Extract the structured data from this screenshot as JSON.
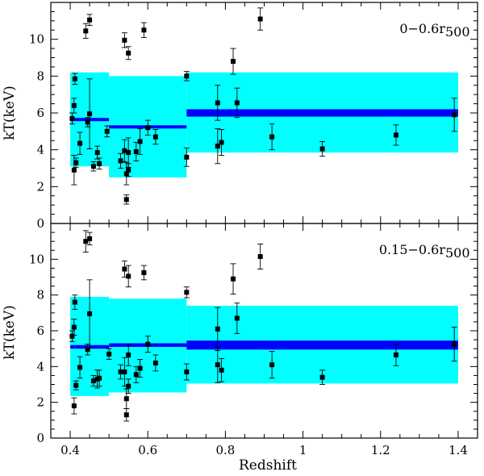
{
  "chart_data": [
    {
      "type": "scatter",
      "panel": "top",
      "annotation": "0−0.6r",
      "annotation_sub": "500",
      "xlabel": "Redshift",
      "ylabel": "kT(keV)",
      "xlim": [
        0.35,
        1.45
      ],
      "ylim": [
        0,
        12
      ],
      "xticks": [
        0.4,
        0.6,
        0.8,
        1,
        1.2,
        1.4
      ],
      "xtick_labels": [],
      "yticks": [
        0,
        2,
        4,
        6,
        8,
        10
      ],
      "ytick_labels": [
        "0",
        "2",
        "4",
        "6",
        "8",
        "10"
      ],
      "bin_colors": {
        "band": "#00ffff",
        "mean": "#0000ff",
        "points": "#000000"
      },
      "bins": [
        {
          "x0": 0.4,
          "x1": 0.5,
          "band_low": 3.1,
          "band_high": 8.2,
          "mean": 5.65,
          "mean_err": 0.08
        },
        {
          "x0": 0.5,
          "x1": 0.7,
          "band_low": 2.5,
          "band_high": 8.0,
          "mean": 5.25,
          "mean_err": 0.08
        },
        {
          "x0": 0.7,
          "x1": 1.4,
          "band_low": 3.85,
          "band_high": 8.2,
          "mean": 6.0,
          "mean_err": 0.2
        }
      ],
      "points": [
        {
          "x": 0.405,
          "y": 5.7,
          "err": 0.3
        },
        {
          "x": 0.41,
          "y": 6.4,
          "err": 0.4
        },
        {
          "x": 0.41,
          "y": 2.9,
          "err": 0.8
        },
        {
          "x": 0.412,
          "y": 7.85,
          "err": 0.3
        },
        {
          "x": 0.415,
          "y": 3.3,
          "err": 0.25
        },
        {
          "x": 0.425,
          "y": 4.35,
          "err": 0.6
        },
        {
          "x": 0.44,
          "y": 10.45,
          "err": 0.4
        },
        {
          "x": 0.445,
          "y": 5.5,
          "err": 0.25
        },
        {
          "x": 0.45,
          "y": 11.05,
          "err": 0.3
        },
        {
          "x": 0.45,
          "y": 5.95,
          "err": 1.9
        },
        {
          "x": 0.46,
          "y": 3.1,
          "err": 0.25
        },
        {
          "x": 0.47,
          "y": 3.85,
          "err": 0.35
        },
        {
          "x": 0.475,
          "y": 3.25,
          "err": 0.3
        },
        {
          "x": 0.495,
          "y": 5.0,
          "err": 0.3
        },
        {
          "x": 0.53,
          "y": 3.4,
          "err": 0.4
        },
        {
          "x": 0.54,
          "y": 9.95,
          "err": 0.4
        },
        {
          "x": 0.54,
          "y": 3.95,
          "err": 0.6
        },
        {
          "x": 0.545,
          "y": 1.3,
          "err": 0.25
        },
        {
          "x": 0.545,
          "y": 2.7,
          "err": 0.6
        },
        {
          "x": 0.55,
          "y": 9.25,
          "err": 0.35
        },
        {
          "x": 0.55,
          "y": 3.85,
          "err": 0.8
        },
        {
          "x": 0.55,
          "y": 2.9,
          "err": 0.35
        },
        {
          "x": 0.57,
          "y": 3.9,
          "err": 0.5
        },
        {
          "x": 0.58,
          "y": 4.45,
          "err": 0.7
        },
        {
          "x": 0.59,
          "y": 10.5,
          "err": 0.4
        },
        {
          "x": 0.6,
          "y": 5.2,
          "err": 0.4
        },
        {
          "x": 0.62,
          "y": 4.7,
          "err": 0.4
        },
        {
          "x": 0.7,
          "y": 8.0,
          "err": 0.25
        },
        {
          "x": 0.7,
          "y": 3.6,
          "err": 0.5
        },
        {
          "x": 0.78,
          "y": 6.55,
          "err": 0.95
        },
        {
          "x": 0.78,
          "y": 4.2,
          "err": 0.95
        },
        {
          "x": 0.79,
          "y": 4.4,
          "err": 0.7
        },
        {
          "x": 0.82,
          "y": 8.8,
          "err": 0.7
        },
        {
          "x": 0.83,
          "y": 6.55,
          "err": 0.8
        },
        {
          "x": 0.89,
          "y": 11.1,
          "err": 0.6
        },
        {
          "x": 0.92,
          "y": 4.7,
          "err": 0.7
        },
        {
          "x": 1.05,
          "y": 4.05,
          "err": 0.4
        },
        {
          "x": 1.24,
          "y": 4.8,
          "err": 0.55
        },
        {
          "x": 1.39,
          "y": 5.9,
          "err": 0.9
        }
      ]
    },
    {
      "type": "scatter",
      "panel": "bottom",
      "annotation": "0.15−0.6r",
      "annotation_sub": "500",
      "xlabel": "Redshift",
      "ylabel": "kT(keV)",
      "xlim": [
        0.35,
        1.45
      ],
      "ylim": [
        0,
        12
      ],
      "xticks": [
        0.4,
        0.6,
        0.8,
        1,
        1.2,
        1.4
      ],
      "xtick_labels": [
        "0.4",
        "0.6",
        "0.8",
        "1",
        "1.2",
        "1.4"
      ],
      "yticks": [
        0,
        2,
        4,
        6,
        8,
        10
      ],
      "ytick_labels": [
        "0",
        "2",
        "4",
        "6",
        "8",
        "10"
      ],
      "bin_colors": {
        "band": "#00ffff",
        "mean": "#0000ff",
        "points": "#000000"
      },
      "bins": [
        {
          "x0": 0.4,
          "x1": 0.5,
          "band_low": 2.35,
          "band_high": 7.9,
          "mean": 5.1,
          "mean_err": 0.1
        },
        {
          "x0": 0.5,
          "x1": 0.7,
          "band_low": 2.55,
          "band_high": 7.8,
          "mean": 5.2,
          "mean_err": 0.1
        },
        {
          "x0": 0.7,
          "x1": 1.4,
          "band_low": 3.05,
          "band_high": 7.4,
          "mean": 5.2,
          "mean_err": 0.25
        }
      ],
      "points": [
        {
          "x": 0.405,
          "y": 5.7,
          "err": 0.3
        },
        {
          "x": 0.41,
          "y": 6.2,
          "err": 0.45
        },
        {
          "x": 0.41,
          "y": 1.8,
          "err": 0.45
        },
        {
          "x": 0.412,
          "y": 7.6,
          "err": 0.4
        },
        {
          "x": 0.415,
          "y": 2.95,
          "err": 0.25
        },
        {
          "x": 0.425,
          "y": 3.95,
          "err": 0.6
        },
        {
          "x": 0.44,
          "y": 11.0,
          "err": 0.6
        },
        {
          "x": 0.445,
          "y": 4.95,
          "err": 0.3
        },
        {
          "x": 0.45,
          "y": 11.15,
          "err": 0.35
        },
        {
          "x": 0.45,
          "y": 6.95,
          "err": 1.9
        },
        {
          "x": 0.46,
          "y": 3.2,
          "err": 0.3
        },
        {
          "x": 0.47,
          "y": 3.3,
          "err": 0.5
        },
        {
          "x": 0.475,
          "y": 3.35,
          "err": 0.45
        },
        {
          "x": 0.5,
          "y": 4.7,
          "err": 0.3
        },
        {
          "x": 0.53,
          "y": 3.7,
          "err": 0.4
        },
        {
          "x": 0.54,
          "y": 9.45,
          "err": 0.45
        },
        {
          "x": 0.54,
          "y": 3.7,
          "err": 0.8
        },
        {
          "x": 0.545,
          "y": 1.3,
          "err": 0.35
        },
        {
          "x": 0.545,
          "y": 2.2,
          "err": 0.55
        },
        {
          "x": 0.55,
          "y": 9.05,
          "err": 0.6
        },
        {
          "x": 0.55,
          "y": 4.65,
          "err": 0.6
        },
        {
          "x": 0.55,
          "y": 2.9,
          "err": 0.4
        },
        {
          "x": 0.57,
          "y": 3.55,
          "err": 0.45
        },
        {
          "x": 0.58,
          "y": 3.9,
          "err": 0.5
        },
        {
          "x": 0.59,
          "y": 9.25,
          "err": 0.4
        },
        {
          "x": 0.6,
          "y": 5.25,
          "err": 0.45
        },
        {
          "x": 0.62,
          "y": 4.2,
          "err": 0.45
        },
        {
          "x": 0.7,
          "y": 8.15,
          "err": 0.3
        },
        {
          "x": 0.7,
          "y": 3.7,
          "err": 0.45
        },
        {
          "x": 0.78,
          "y": 6.1,
          "err": 1.2
        },
        {
          "x": 0.78,
          "y": 4.1,
          "err": 1.0
        },
        {
          "x": 0.79,
          "y": 3.8,
          "err": 0.65
        },
        {
          "x": 0.82,
          "y": 8.9,
          "err": 0.85
        },
        {
          "x": 0.83,
          "y": 6.7,
          "err": 0.85
        },
        {
          "x": 0.89,
          "y": 10.15,
          "err": 0.7
        },
        {
          "x": 0.92,
          "y": 4.1,
          "err": 0.75
        },
        {
          "x": 1.05,
          "y": 3.4,
          "err": 0.4
        },
        {
          "x": 1.24,
          "y": 4.65,
          "err": 0.6
        },
        {
          "x": 1.39,
          "y": 5.25,
          "err": 0.95
        }
      ]
    }
  ]
}
